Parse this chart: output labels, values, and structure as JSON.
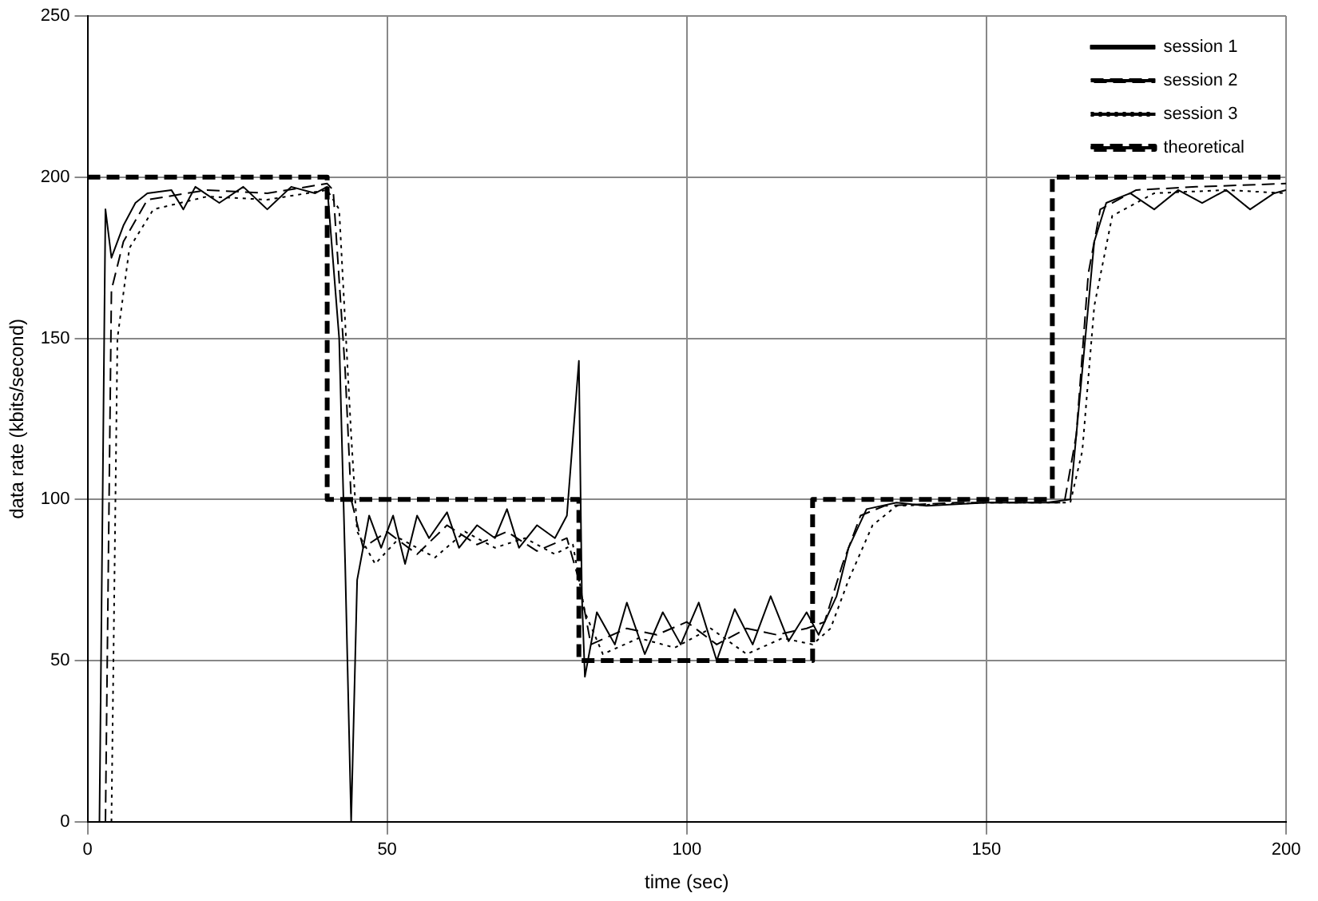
{
  "chart_data": {
    "type": "line",
    "xlabel": "time (sec)",
    "ylabel": "data rate (kbits/second)",
    "xlim": [
      0,
      200
    ],
    "xticks": [
      0,
      50,
      100,
      150,
      200
    ],
    "ylim": [
      0,
      250
    ],
    "yticks": [
      0,
      50,
      100,
      150,
      200,
      250
    ],
    "grid": true,
    "legend": "top right",
    "marker": "none",
    "series": [
      {
        "name": "session 1",
        "color": "#000000",
        "line_style": "solid",
        "x": [
          2,
          3,
          4,
          6,
          8,
          10,
          14,
          16,
          18,
          22,
          26,
          30,
          34,
          38,
          40,
          42,
          43,
          44,
          45,
          47,
          49,
          51,
          53,
          55,
          57,
          60,
          62,
          65,
          68,
          70,
          72,
          75,
          78,
          80,
          82,
          82.5,
          83,
          85,
          88,
          90,
          93,
          96,
          99,
          102,
          105,
          108,
          111,
          114,
          117,
          120,
          122,
          125,
          127,
          130,
          135,
          140,
          150,
          160,
          164,
          166,
          168,
          170,
          174,
          178,
          182,
          186,
          190,
          194,
          198,
          200
        ],
        "values": [
          0,
          190,
          175,
          185,
          192,
          195,
          196,
          190,
          197,
          192,
          197,
          190,
          197,
          195,
          197,
          150,
          80,
          0,
          75,
          95,
          85,
          95,
          80,
          95,
          88,
          96,
          85,
          92,
          88,
          97,
          85,
          92,
          88,
          95,
          143,
          70,
          45,
          65,
          55,
          68,
          52,
          65,
          55,
          68,
          50,
          66,
          55,
          70,
          56,
          65,
          58,
          70,
          85,
          97,
          99,
          98,
          99,
          99,
          100,
          140,
          180,
          192,
          195,
          190,
          196,
          192,
          196,
          190,
          195,
          196
        ]
      },
      {
        "name": "session 2",
        "color": "#000000",
        "line_style": "dashed",
        "x": [
          3,
          4,
          6,
          10,
          20,
          30,
          40,
          41,
          43,
          44,
          46,
          50,
          55,
          60,
          65,
          70,
          75,
          80,
          82,
          84,
          90,
          95,
          100,
          105,
          110,
          115,
          120,
          123,
          126,
          129,
          133,
          145,
          163,
          165,
          167,
          169,
          175,
          185,
          200
        ],
        "values": [
          0,
          165,
          180,
          193,
          196,
          195,
          198,
          196,
          140,
          100,
          85,
          90,
          83,
          92,
          86,
          90,
          84,
          88,
          75,
          55,
          60,
          58,
          62,
          55,
          60,
          58,
          60,
          62,
          80,
          95,
          98,
          99,
          99,
          120,
          170,
          190,
          196,
          197,
          198
        ]
      },
      {
        "name": "session 3",
        "color": "#000000",
        "line_style": "dotted",
        "x": [
          4,
          5,
          7,
          11,
          20,
          30,
          40,
          42,
          44,
          45,
          48,
          52,
          58,
          63,
          68,
          73,
          78,
          81,
          83,
          86,
          92,
          98,
          104,
          110,
          116,
          121,
          124,
          127,
          131,
          135,
          150,
          164,
          166,
          168,
          171,
          178,
          190,
          200
        ],
        "values": [
          0,
          150,
          178,
          190,
          194,
          193,
          196,
          190,
          120,
          90,
          80,
          88,
          82,
          90,
          85,
          88,
          83,
          86,
          65,
          52,
          57,
          54,
          60,
          52,
          57,
          55,
          60,
          75,
          92,
          98,
          99,
          99,
          115,
          160,
          188,
          195,
          196,
          195
        ]
      },
      {
        "name": "theoretical",
        "color": "#000000",
        "line_style": "dashed",
        "x": [
          0,
          40,
          40,
          82,
          82,
          121,
          121,
          161,
          161,
          200
        ],
        "values": [
          200,
          200,
          100,
          100,
          50,
          50,
          100,
          100,
          200,
          200
        ]
      }
    ]
  }
}
